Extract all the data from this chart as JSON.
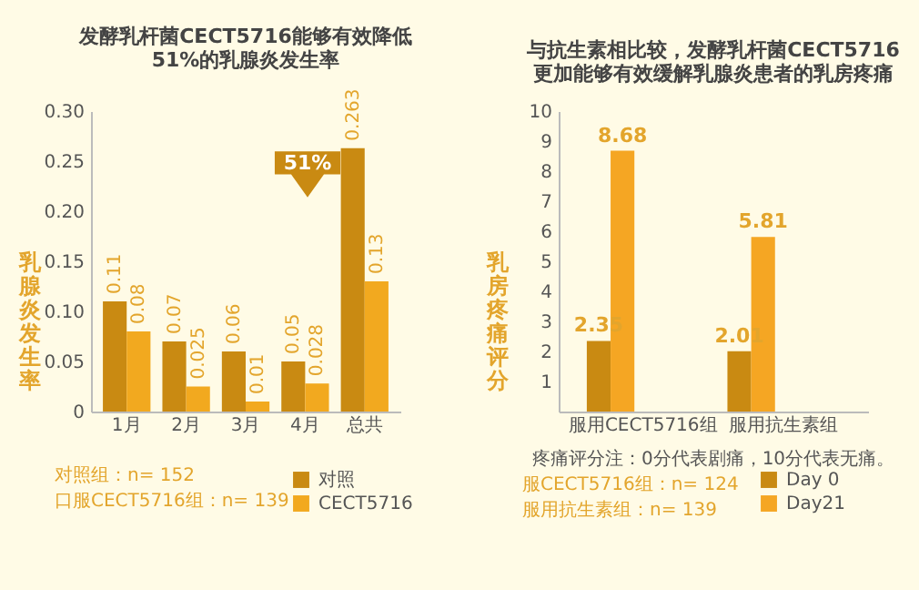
{
  "chart_data": [
    {
      "type": "bar",
      "title": "发酵乳杆菌CECT5716能够有效降低\n51%的乳腺炎发生率",
      "ylabel": "乳腺炎发生率",
      "categories": [
        "1月",
        "2月",
        "3月",
        "4月",
        "总共"
      ],
      "series": [
        {
          "name": "对照",
          "color": "#c98a12",
          "values": [
            0.11,
            0.07,
            0.06,
            0.05,
            0.263
          ]
        },
        {
          "name": "CECT5716",
          "color": "#f2a91f",
          "values": [
            0.08,
            0.025,
            0.01,
            0.028,
            0.13
          ]
        }
      ],
      "ylim": [
        0,
        0.3
      ],
      "yticks": [
        0,
        {
          "value": 0.05,
          "label": "0.05"
        },
        {
          "value": 0.1,
          "label": "0.10"
        },
        {
          "value": 0.15,
          "label": "0.15"
        },
        {
          "value": 0.2,
          "label": "0.20"
        },
        {
          "value": 0.25,
          "label": "0.25"
        },
        {
          "value": 0.3,
          "label": "0.30"
        }
      ],
      "data_labels": true,
      "grid": false,
      "legend": "bottom right",
      "annotations": [
        "51%",
        "对照组：n= 152",
        "口服CECT5716组：n= 139"
      ]
    },
    {
      "type": "bar",
      "title": "与抗生素相比较，发酵乳杆菌CECT5716\n更加能够有效缓解乳腺炎患者的乳房疼痛",
      "ylabel": "乳房疼痛评分",
      "categories": [
        "服用CECT5716组",
        "服用抗生素组"
      ],
      "series": [
        {
          "name": "Day 0",
          "color": "#c98a12",
          "values": [
            2.35,
            2.01
          ]
        },
        {
          "name": "Day21",
          "color": "#f5a623",
          "values": [
            8.68,
            5.81
          ]
        }
      ],
      "ylim": [
        0,
        10
      ],
      "yticks": [
        1,
        2,
        3,
        4,
        5,
        6,
        7,
        8,
        9,
        10
      ],
      "data_labels": true,
      "grid": false,
      "legend": "bottom right",
      "annotations": [
        "疼痛评分注：0分代表剧痛，10分代表无痛。",
        "服CECT5716组：n= 124",
        "服用抗生素组：n= 139"
      ]
    }
  ]
}
